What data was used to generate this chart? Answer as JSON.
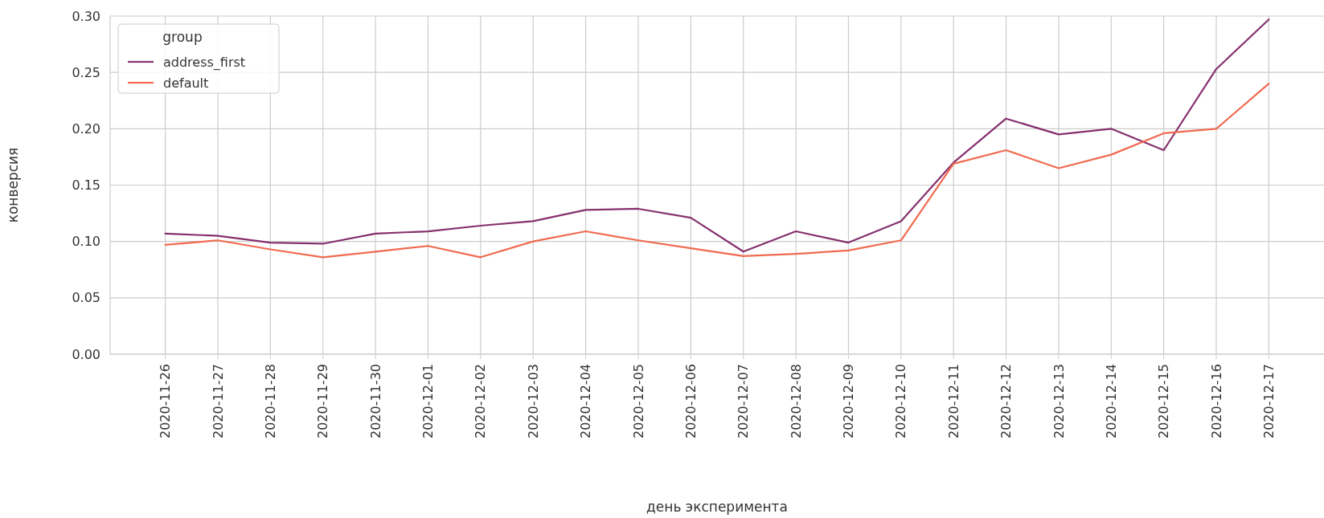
{
  "chart_data": {
    "type": "line",
    "xlabel": "день эксперимента",
    "ylabel": "конверсия",
    "legend_title": "group",
    "legend": "top left",
    "grid": true,
    "categories": [
      "2020-11-26",
      "2020-11-27",
      "2020-11-28",
      "2020-11-29",
      "2020-11-30",
      "2020-12-01",
      "2020-12-02",
      "2020-12-03",
      "2020-12-04",
      "2020-12-05",
      "2020-12-06",
      "2020-12-07",
      "2020-12-08",
      "2020-12-09",
      "2020-12-10",
      "2020-12-11",
      "2020-12-12",
      "2020-12-13",
      "2020-12-14",
      "2020-12-15",
      "2020-12-16",
      "2020-12-17"
    ],
    "ylim": [
      0,
      0.3
    ],
    "yticks": [
      {
        "value": 0,
        "label": "0.00"
      },
      {
        "value": 0.05,
        "label": "0.05"
      },
      {
        "value": 0.1,
        "label": "0.10"
      },
      {
        "value": 0.15,
        "label": "0.15"
      },
      {
        "value": 0.2,
        "label": "0.20"
      },
      {
        "value": 0.25,
        "label": "0.25"
      },
      {
        "value": 0.3,
        "label": "0.30"
      }
    ],
    "series": [
      {
        "name": "address_first",
        "color": "#86306e",
        "values": [
          0.107,
          0.105,
          0.099,
          0.098,
          0.107,
          0.109,
          0.114,
          0.118,
          0.128,
          0.129,
          0.121,
          0.091,
          0.109,
          0.099,
          0.118,
          0.17,
          0.209,
          0.195,
          0.2,
          0.181,
          0.253,
          0.297
        ]
      },
      {
        "name": "default",
        "color": "#f06a50",
        "values": [
          0.097,
          0.101,
          0.093,
          0.086,
          0.091,
          0.096,
          0.086,
          0.1,
          0.109,
          0.101,
          0.094,
          0.087,
          0.089,
          0.092,
          0.101,
          0.169,
          0.181,
          0.165,
          0.177,
          0.196,
          0.2,
          0.24
        ]
      }
    ]
  }
}
